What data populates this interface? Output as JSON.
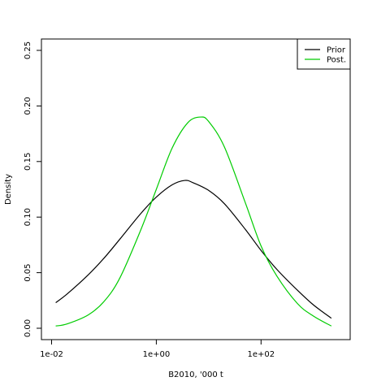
{
  "chart_data": {
    "type": "line",
    "title": "",
    "xlabel": "B2010, '000 t",
    "ylabel": "Density",
    "x_scale": "log10",
    "xlim": [
      0.01,
      3000
    ],
    "ylim": [
      0,
      0.25
    ],
    "x_ticks": [
      {
        "value": 0.01,
        "label": "1e-02"
      },
      {
        "value": 1,
        "label": "1e+00"
      },
      {
        "value": 100,
        "label": "1e+02"
      }
    ],
    "y_ticks": [
      {
        "value": 0,
        "label": "0.00"
      },
      {
        "value": 0.05,
        "label": "0.05"
      },
      {
        "value": 0.1,
        "label": "0.10"
      },
      {
        "value": 0.15,
        "label": "0.15"
      },
      {
        "value": 0.2,
        "label": "0.20"
      },
      {
        "value": 0.25,
        "label": "0.25"
      }
    ],
    "grid": false,
    "legend": {
      "position": "top-right"
    },
    "series": [
      {
        "name": "Prior",
        "color": "#000000",
        "x": [
          0.012,
          0.02,
          0.05,
          0.1,
          0.2,
          0.5,
          1,
          2,
          3.5,
          5,
          10,
          20,
          50,
          100,
          200,
          500,
          1000,
          2200
        ],
        "y": [
          0.023,
          0.031,
          0.048,
          0.063,
          0.08,
          0.103,
          0.118,
          0.129,
          0.133,
          0.131,
          0.124,
          0.112,
          0.089,
          0.07,
          0.053,
          0.034,
          0.021,
          0.009
        ]
      },
      {
        "name": "Post.",
        "color": "#00cc00",
        "x": [
          0.012,
          0.02,
          0.05,
          0.1,
          0.2,
          0.5,
          1,
          2,
          4,
          7,
          10,
          20,
          50,
          100,
          200,
          500,
          1000,
          2200
        ],
        "y": [
          0.002,
          0.004,
          0.012,
          0.024,
          0.045,
          0.088,
          0.125,
          0.162,
          0.185,
          0.19,
          0.186,
          0.163,
          0.113,
          0.074,
          0.047,
          0.022,
          0.011,
          0.002
        ]
      }
    ]
  }
}
